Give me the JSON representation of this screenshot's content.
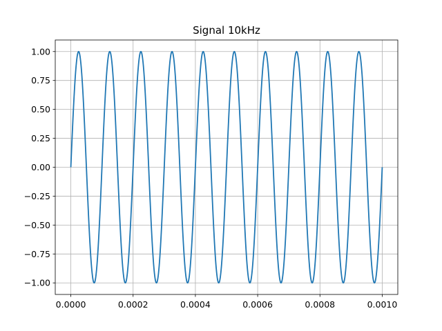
{
  "chart_data": {
    "type": "line",
    "title": "Signal 10kHz",
    "xlabel": "",
    "ylabel": "",
    "xlim": [
      -5e-05,
      0.00105
    ],
    "ylim": [
      -1.1,
      1.1
    ],
    "grid": true,
    "legend": "none",
    "x_ticks": [
      {
        "value": 0.0,
        "label": "0.0000"
      },
      {
        "value": 0.0002,
        "label": "0.0002"
      },
      {
        "value": 0.0004,
        "label": "0.0004"
      },
      {
        "value": 0.0006,
        "label": "0.0006"
      },
      {
        "value": 0.0008,
        "label": "0.0008"
      },
      {
        "value": 0.001,
        "label": "0.0010"
      }
    ],
    "y_ticks": [
      {
        "value": 1.0,
        "label": "1.00"
      },
      {
        "value": 0.75,
        "label": "0.75"
      },
      {
        "value": 0.5,
        "label": "0.50"
      },
      {
        "value": 0.25,
        "label": "0.25"
      },
      {
        "value": 0.0,
        "label": "0.00"
      },
      {
        "value": -0.25,
        "label": "−0.25"
      },
      {
        "value": -0.5,
        "label": "−0.50"
      },
      {
        "value": -0.75,
        "label": "−0.75"
      },
      {
        "value": -1.0,
        "label": "−1.00"
      }
    ],
    "series": [
      {
        "color": "#1f77b4",
        "function": "sine",
        "frequency_hz": 10000,
        "amplitude": 1.0,
        "x_range": [
          0.0,
          0.001
        ]
      }
    ]
  }
}
